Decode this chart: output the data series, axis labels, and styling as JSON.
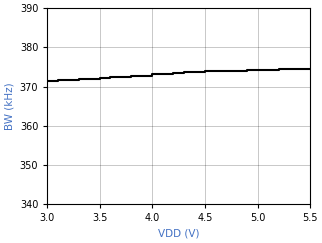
{
  "x": [
    3.0,
    3.1,
    3.2,
    3.3,
    3.4,
    3.5,
    3.6,
    3.7,
    3.8,
    3.9,
    4.0,
    4.1,
    4.2,
    4.3,
    4.4,
    4.5,
    4.6,
    4.7,
    4.8,
    4.9,
    5.0,
    5.1,
    5.2,
    5.3,
    5.4,
    5.5
  ],
  "y": [
    371.5,
    371.6,
    371.8,
    371.9,
    372.0,
    372.3,
    372.4,
    372.5,
    372.6,
    372.7,
    373.1,
    373.3,
    373.5,
    373.6,
    373.7,
    373.9,
    374.0,
    374.0,
    374.1,
    374.2,
    374.3,
    374.3,
    374.4,
    374.4,
    374.5,
    374.5
  ],
  "xlim": [
    3,
    5.5
  ],
  "ylim": [
    340,
    390
  ],
  "xticks": [
    3,
    3.5,
    4,
    4.5,
    5,
    5.5
  ],
  "yticks": [
    340,
    350,
    360,
    370,
    380,
    390
  ],
  "xlabel": "VDD (V)",
  "ylabel": "BW (kHz)",
  "line_color": "#000000",
  "line_width": 1.5,
  "grid_color": "#000000",
  "grid_alpha": 0.3,
  "background_color": "#ffffff",
  "xlabel_color": "#4472c4",
  "ylabel_color": "#4472c4",
  "tick_label_color": "#000000",
  "font_size_axis_label": 7.5,
  "font_size_tick": 7
}
